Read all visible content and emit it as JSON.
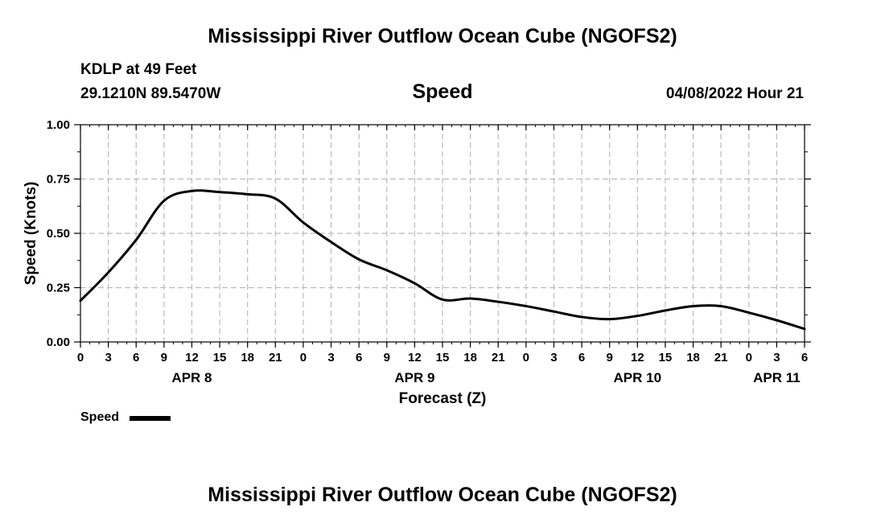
{
  "header": {
    "title_top": "Mississippi River Outflow Ocean Cube (NGOFS2)",
    "station": "KDLP at 49 Feet",
    "coords": "29.1210N  89.5470W",
    "datetime": "04/08/2022 Hour 21"
  },
  "footer": {
    "title_bottom": "Mississippi River Outflow Ocean Cube (NGOFS2)"
  },
  "chart_data": {
    "type": "line",
    "title": "Speed",
    "xlabel": "Forecast (Z)",
    "ylabel": "Speed (Knots)",
    "x_unit": "forecast hours from 00Z Apr 8",
    "xlim": [
      0,
      78
    ],
    "ylim": [
      0,
      1.0
    ],
    "grid": true,
    "y_ticks": [
      "0.00",
      "0.25",
      "0.50",
      "0.75",
      "1.00"
    ],
    "x_ticks": [
      "0",
      "3",
      "6",
      "9",
      "12",
      "15",
      "18",
      "21",
      "0",
      "3",
      "6",
      "9",
      "12",
      "15",
      "18",
      "21",
      "0",
      "3",
      "6",
      "9",
      "12",
      "15",
      "18",
      "21",
      "0",
      "3",
      "6"
    ],
    "day_labels": [
      {
        "hour": 12,
        "label": "APR 8"
      },
      {
        "hour": 36,
        "label": "APR 9"
      },
      {
        "hour": 60,
        "label": "APR 10"
      },
      {
        "hour": 75,
        "label": "APR 11"
      }
    ],
    "legend": {
      "position": "bottom-left",
      "label": "Speed"
    },
    "series": [
      {
        "name": "Speed",
        "color": "#000000",
        "x": [
          0,
          3,
          6,
          9,
          12,
          15,
          18,
          21,
          24,
          27,
          30,
          33,
          36,
          39,
          42,
          45,
          48,
          51,
          54,
          57,
          60,
          63,
          66,
          69,
          72,
          75,
          78
        ],
        "values": [
          0.19,
          0.32,
          0.47,
          0.65,
          0.695,
          0.69,
          0.68,
          0.66,
          0.55,
          0.46,
          0.38,
          0.33,
          0.27,
          0.195,
          0.2,
          0.185,
          0.165,
          0.14,
          0.115,
          0.105,
          0.12,
          0.145,
          0.165,
          0.165,
          0.135,
          0.1,
          0.06
        ]
      }
    ]
  }
}
